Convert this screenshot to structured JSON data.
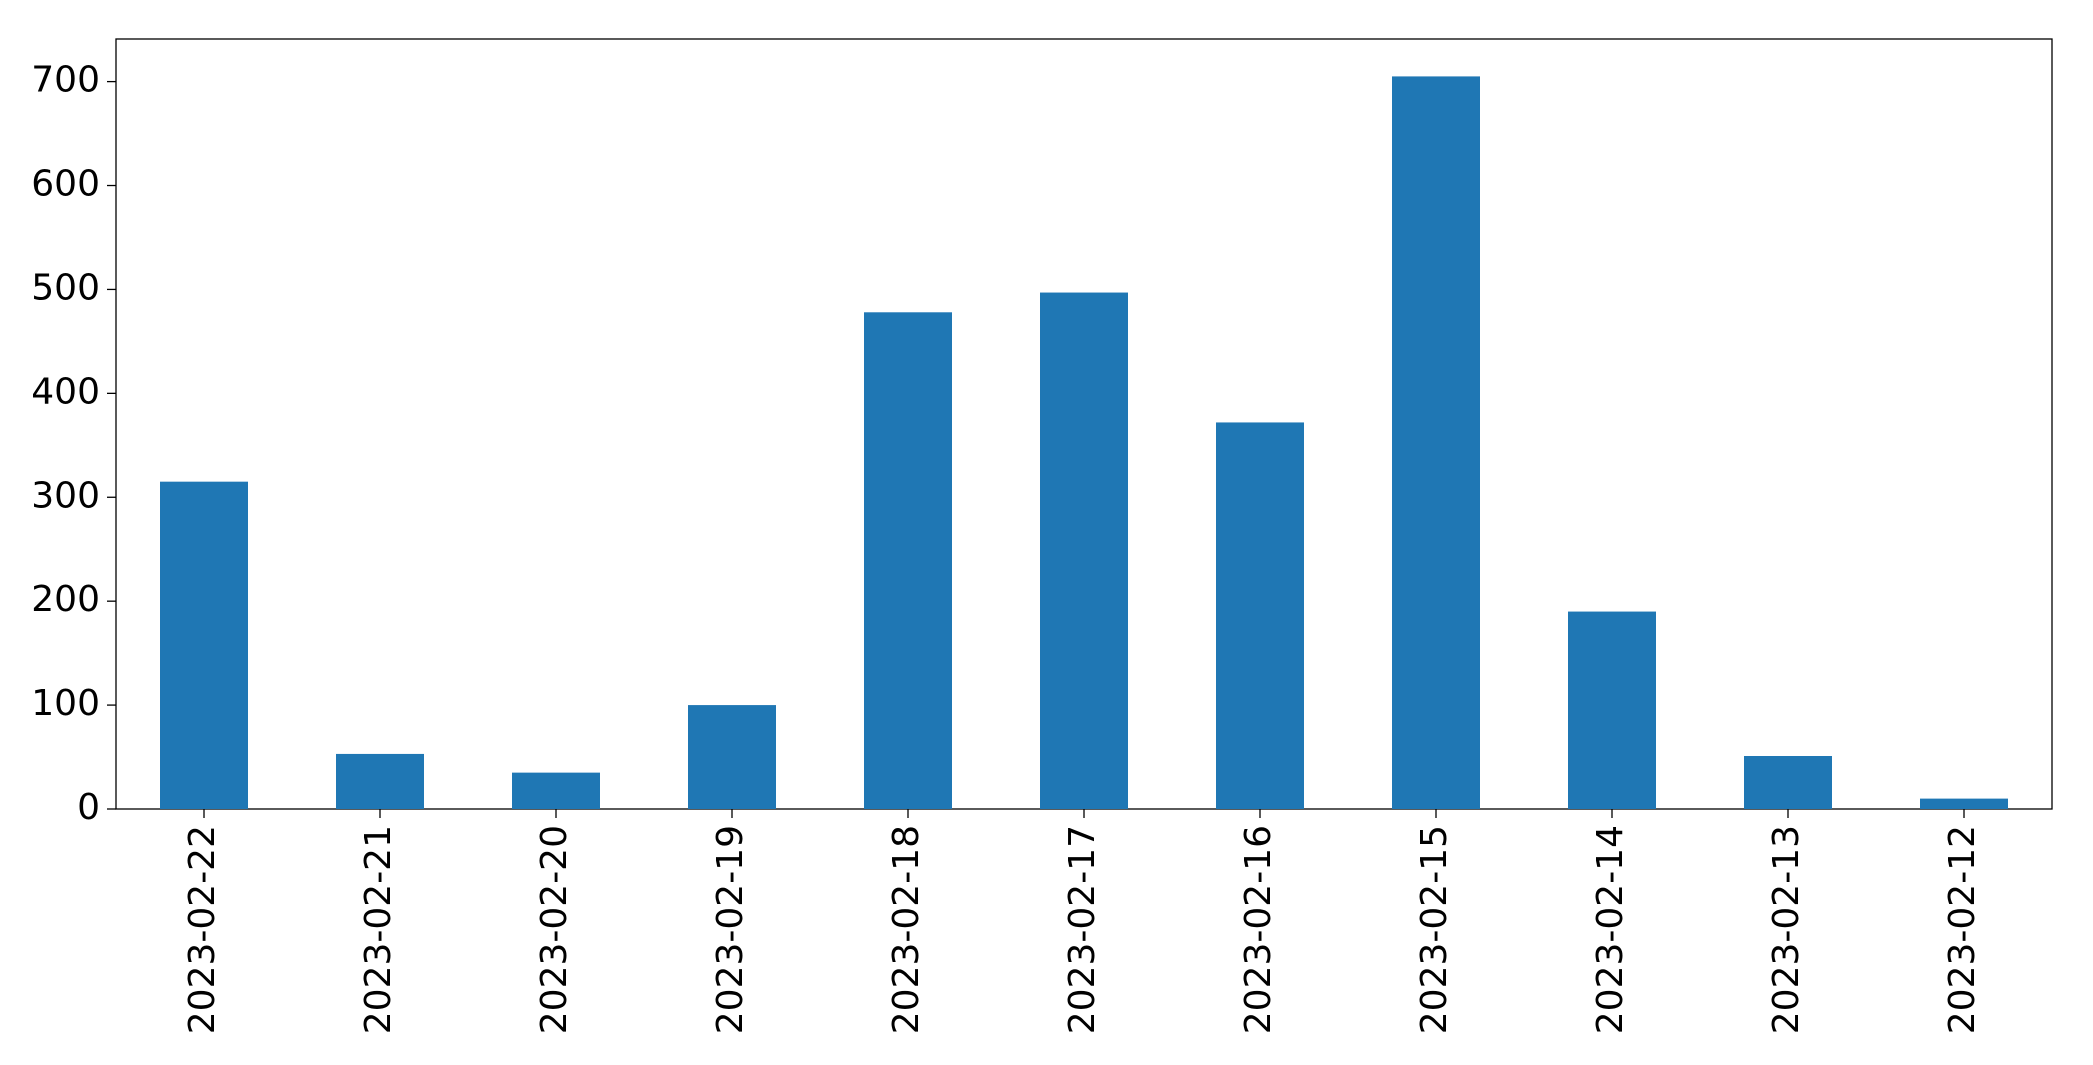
{
  "chart_data": {
    "type": "bar",
    "categories": [
      "2023-02-22",
      "2023-02-21",
      "2023-02-20",
      "2023-02-19",
      "2023-02-18",
      "2023-02-17",
      "2023-02-16",
      "2023-02-15",
      "2023-02-14",
      "2023-02-13",
      "2023-02-12"
    ],
    "values": [
      315,
      53,
      35,
      100,
      478,
      497,
      372,
      705,
      190,
      51,
      10
    ],
    "color": "#1f77b4",
    "ylim": [
      0,
      741
    ],
    "yticks": [
      0,
      100,
      200,
      300,
      400,
      500,
      600,
      700
    ],
    "grid": false
  }
}
